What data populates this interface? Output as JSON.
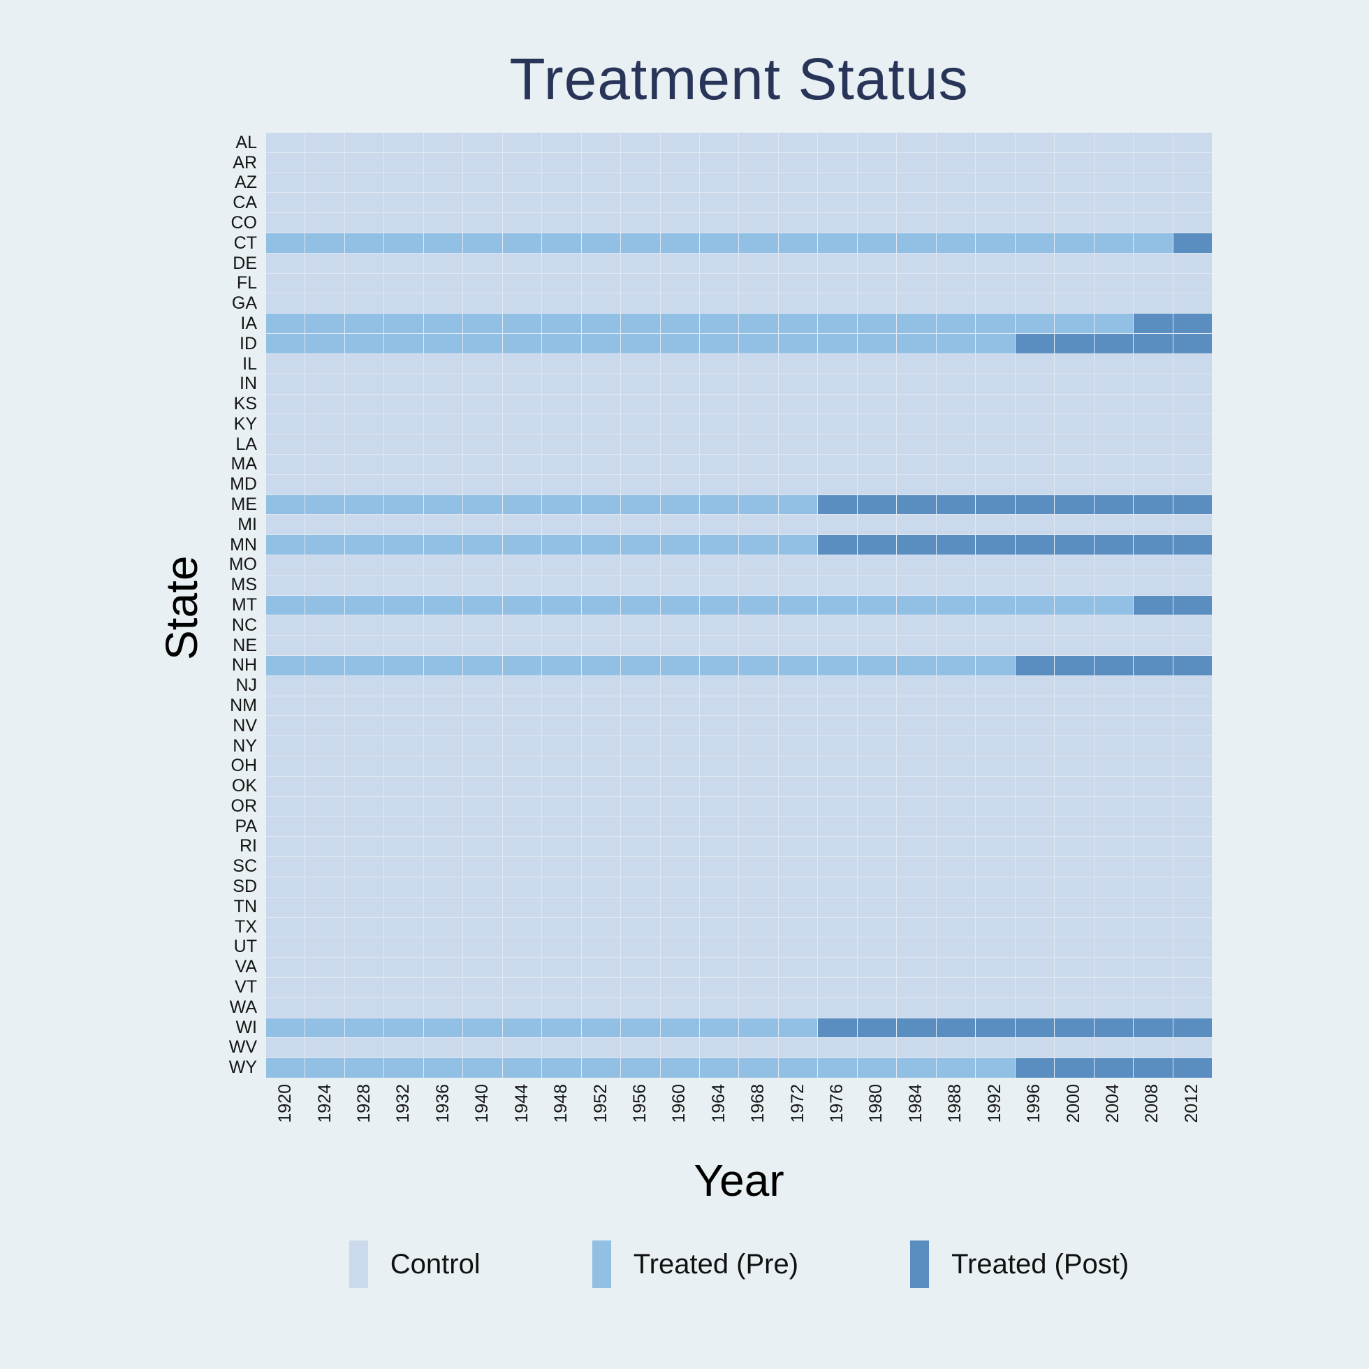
{
  "title": "Treatment Status",
  "x_axis": {
    "label": "Year"
  },
  "y_axis": {
    "label": "State"
  },
  "legend": [
    {
      "label": "Control",
      "color_key": "control"
    },
    {
      "label": "Treated (Pre)",
      "color_key": "pre"
    },
    {
      "label": "Treated (Post)",
      "color_key": "post"
    }
  ],
  "colors": {
    "background": "#e9f0f3",
    "control": "#cad9ec",
    "pre": "#92bfe4",
    "post": "#5a8ec0",
    "grid": "#dfe8f3",
    "title": "#283558"
  },
  "chart_data": {
    "type": "heatmap",
    "title": "Treatment Status",
    "xlabel": "Year",
    "ylabel": "State",
    "x": [
      1920,
      1924,
      1928,
      1932,
      1936,
      1940,
      1944,
      1948,
      1952,
      1956,
      1960,
      1964,
      1968,
      1972,
      1976,
      1980,
      1984,
      1988,
      1992,
      1996,
      2000,
      2004,
      2008,
      2012
    ],
    "states": [
      "AL",
      "AR",
      "AZ",
      "CA",
      "CO",
      "CT",
      "DE",
      "FL",
      "GA",
      "IA",
      "ID",
      "IL",
      "IN",
      "KS",
      "KY",
      "LA",
      "MA",
      "MD",
      "ME",
      "MI",
      "MN",
      "MO",
      "MS",
      "MT",
      "NC",
      "NE",
      "NH",
      "NJ",
      "NM",
      "NV",
      "NY",
      "OH",
      "OK",
      "OR",
      "PA",
      "RI",
      "SC",
      "SD",
      "TN",
      "TX",
      "UT",
      "VA",
      "VT",
      "WA",
      "WI",
      "WV",
      "WY"
    ],
    "categories": [
      "Control",
      "Treated (Pre)",
      "Treated (Post)"
    ],
    "treated_first_post_year": {
      "CT": 2012,
      "IA": 2008,
      "ID": 1996,
      "ME": 1976,
      "MN": 1976,
      "MT": 2008,
      "NH": 1996,
      "WI": 1976,
      "WY": 1996
    },
    "legend_position": "bottom",
    "grid": true
  }
}
